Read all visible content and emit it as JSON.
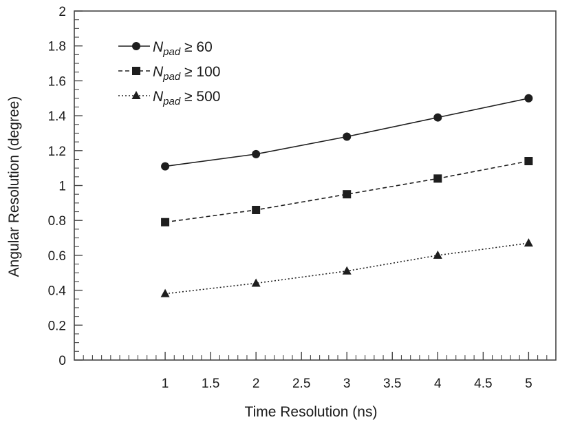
{
  "chart_data": {
    "type": "line",
    "title": "",
    "xlabel": "Time Resolution (ns)",
    "ylabel": "Angular Resolution (degree)",
    "xlim": [
      0.0,
      5.3
    ],
    "ylim": [
      0,
      2
    ],
    "xticks": [
      1,
      1.5,
      2,
      2.5,
      3,
      3.5,
      4,
      4.5,
      5
    ],
    "xtick_labels": [
      "1",
      "1.5",
      "2",
      "2.5",
      "3",
      "3.5",
      "4",
      "4.5",
      "5"
    ],
    "yticks": [
      0,
      0.2,
      0.4,
      0.6,
      0.8,
      1,
      1.2,
      1.4,
      1.6,
      1.8,
      2
    ],
    "ytick_labels": [
      "0",
      "0.2",
      "0.4",
      "0.6",
      "0.8",
      "1",
      "1.2",
      "1.4",
      "1.6",
      "1.8",
      "2"
    ],
    "grid": false,
    "legend_position": "top-left",
    "x": [
      1,
      2,
      3,
      4,
      5
    ],
    "series": [
      {
        "name": "N_pad ≥ 60",
        "legend_var": "N",
        "legend_sub": "pad",
        "legend_rest": "≥ 60",
        "marker": "circle",
        "line": "solid",
        "values": [
          1.11,
          1.18,
          1.28,
          1.39,
          1.5
        ]
      },
      {
        "name": "N_pad ≥ 100",
        "legend_var": "N",
        "legend_sub": "pad",
        "legend_rest": "≥ 100",
        "marker": "square",
        "line": "dashed",
        "values": [
          0.79,
          0.86,
          0.95,
          1.04,
          1.14
        ]
      },
      {
        "name": "N_pad ≥ 500",
        "legend_var": "N",
        "legend_sub": "pad",
        "legend_rest": "≥ 500",
        "marker": "triangle",
        "line": "dotted",
        "values": [
          0.38,
          0.44,
          0.51,
          0.6,
          0.67
        ]
      }
    ],
    "colors": {
      "line": "#1e1e1e",
      "axis": "#444444"
    }
  }
}
